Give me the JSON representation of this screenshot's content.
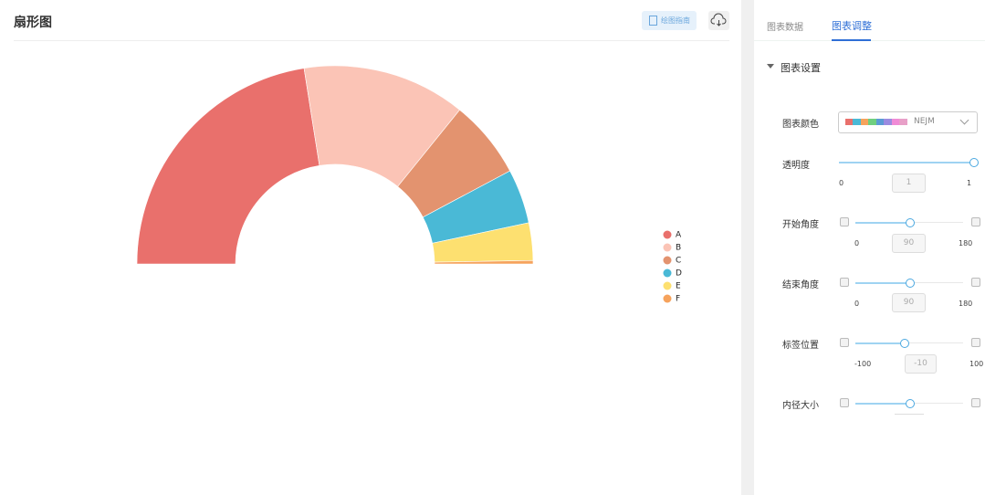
{
  "header": {
    "title": "扇形图",
    "guide_button": "绘图指南"
  },
  "chart_data": {
    "type": "pie",
    "donut": true,
    "categories": [
      "A",
      "B",
      "C",
      "D",
      "E",
      "F"
    ],
    "values": [
      81,
      48,
      23,
      16,
      11,
      1
    ],
    "colors": [
      "#e9706c",
      "#fbc4b6",
      "#e3936f",
      "#4ab9d6",
      "#fde070",
      "#f6a35c"
    ],
    "legend": "right"
  },
  "panel": {
    "tabs": [
      "图表数据",
      "图表调整"
    ],
    "section": "图表设置",
    "color": {
      "label": "图表颜色",
      "scheme": "NEJM"
    },
    "opacity": {
      "label": "透明度",
      "min": 0,
      "value": 1,
      "max": 1
    },
    "start_angle": {
      "label": "开始角度",
      "min": 0,
      "value": 90,
      "max": 180
    },
    "end_angle": {
      "label": "结束角度",
      "min": 0,
      "value": 90,
      "max": 180
    },
    "label_position": {
      "label": "标签位置",
      "min": -100,
      "value": -10,
      "max": 100
    },
    "inner_radius": {
      "label": "内径大小"
    }
  }
}
